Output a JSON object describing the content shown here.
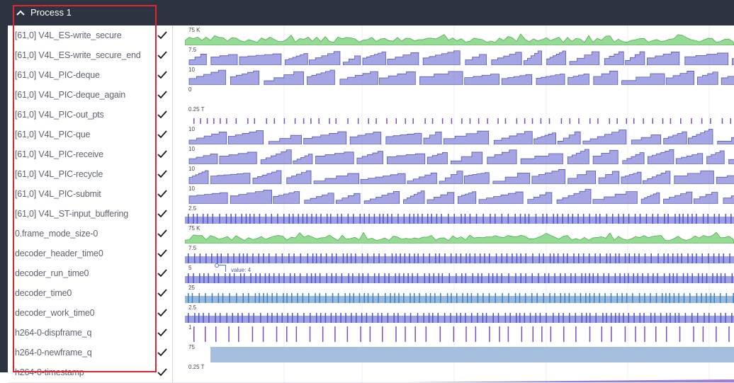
{
  "header": {
    "title": "Process 1"
  },
  "tracks": [
    {
      "label": "[61,0] V4L_ES-write_secure",
      "scale": "75 K",
      "kind": "area",
      "color": "#73cf71"
    },
    {
      "label": "[61,0] V4L_ES-write_secure_end",
      "scale": "7.5",
      "kind": "step",
      "color": "#7d7fd6"
    },
    {
      "label": "[61,0] V4L_PIC-deque",
      "scale": "10",
      "kind": "step",
      "color": "#7d7fd6"
    },
    {
      "label": "[61,0] V4L_PIC-deque_again",
      "scale": "0",
      "kind": "empty",
      "color": "#7d7fd6"
    },
    {
      "label": "[61,0] V4L_PIC-out_pts",
      "scale": "0.25 T",
      "kind": "ticks",
      "color": "#7b4fbf"
    },
    {
      "label": "[61,0] V4L_PIC-que",
      "scale": "10",
      "kind": "step",
      "color": "#7d7fd6"
    },
    {
      "label": "[61,0] V4L_PIC-receive",
      "scale": "10",
      "kind": "step",
      "color": "#7d7fd6"
    },
    {
      "label": "[61,0] V4L_PIC-recycle",
      "scale": "10",
      "kind": "step",
      "color": "#7d7fd6"
    },
    {
      "label": "[61,0] V4L_PIC-submit",
      "scale": "10",
      "kind": "step",
      "color": "#7d7fd6"
    },
    {
      "label": "[61,0] V4L_ST-input_buffering",
      "scale": "2.5",
      "kind": "bars",
      "color": "#4e54c8"
    },
    {
      "label": "0.frame_mode_size-0",
      "scale": "75 K",
      "kind": "area",
      "color": "#73cf71"
    },
    {
      "label": "decoder_header_time0",
      "scale": "7.5",
      "kind": "bars",
      "color": "#4e54c8"
    },
    {
      "label": "decoder_run_time0",
      "scale": "5",
      "kind": "bars",
      "color": "#4e54c8"
    },
    {
      "label": "decoder_time0",
      "scale": "25",
      "kind": "bars",
      "color": "#3f7fbf"
    },
    {
      "label": "decoder_work_time0",
      "scale": "2.5",
      "kind": "bars",
      "color": "#4e54c8"
    },
    {
      "label": "h264-0-dispframe_q",
      "scale": "1",
      "kind": "sparse",
      "color": "#7b4fbf"
    },
    {
      "label": "h264-0-newframe_q",
      "scale": "75",
      "kind": "fill",
      "color": "#a6bfdc"
    },
    {
      "label": "h264-0-timestamp",
      "scale": "0.25 T",
      "kind": "ramp",
      "color": "#9b7fd6"
    }
  ],
  "tooltip": {
    "text": "value: 4"
  }
}
